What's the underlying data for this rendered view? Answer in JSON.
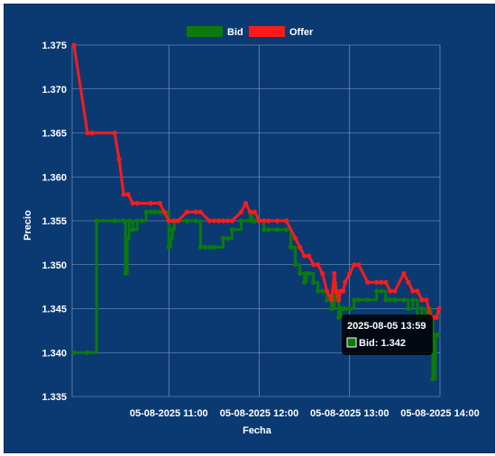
{
  "colors": {
    "background": "#0b3a73",
    "grid": "#8aa3c7",
    "bid": "#0b7a0b",
    "offer": "#ff1a1a",
    "text": "#ffffff",
    "tooltip_bg": "#000000"
  },
  "tooltip": {
    "title": "2025-08-05 13:59",
    "body": "Bid: 1.342"
  },
  "chart_data": {
    "type": "line",
    "xlabel": "Fecha",
    "ylabel": "Precio",
    "grid": true,
    "legend_position": "top",
    "ylim": [
      1.335,
      1.375
    ],
    "y_ticks": [
      "1.375",
      "1.370",
      "1.365",
      "1.360",
      "1.355",
      "1.350",
      "1.345",
      "1.340",
      "1.335"
    ],
    "xlim_minutes": [
      9.93,
      14.0
    ],
    "x_ticks": [
      {
        "label": "05-08-2025 11:00",
        "hour": 11
      },
      {
        "label": "05-08-2025 12:00",
        "hour": 12
      },
      {
        "label": "05-08-2025 13:00",
        "hour": 13
      },
      {
        "label": "05-08-2025 14:00",
        "hour": 14
      }
    ],
    "series": [
      {
        "name": "Bid",
        "color": "#0b7a0b",
        "x_hours": [
          9.95,
          10.1,
          10.2,
          10.4,
          10.5,
          10.52,
          10.54,
          10.56,
          10.6,
          10.65,
          10.7,
          10.75,
          10.8,
          10.85,
          10.9,
          11.0,
          11.02,
          11.04,
          11.06,
          11.1,
          11.2,
          11.3,
          11.35,
          11.4,
          11.45,
          11.5,
          11.6,
          11.65,
          11.7,
          11.8,
          11.9,
          11.92,
          11.95,
          12.0,
          12.05,
          12.1,
          12.2,
          12.3,
          12.35,
          12.4,
          12.45,
          12.5,
          12.52,
          12.55,
          12.6,
          12.65,
          12.7,
          12.75,
          12.8,
          12.83,
          12.85,
          12.88,
          12.9,
          12.93,
          12.95,
          13.0,
          13.05,
          13.1,
          13.2,
          13.3,
          13.35,
          13.4,
          13.45,
          13.5,
          13.6,
          13.65,
          13.7,
          13.75,
          13.8,
          13.85,
          13.88,
          13.9,
          13.92,
          13.95,
          13.98
        ],
        "values": [
          1.34,
          1.34,
          1.355,
          1.355,
          1.355,
          1.349,
          1.353,
          1.355,
          1.354,
          1.355,
          1.355,
          1.356,
          1.356,
          1.356,
          1.356,
          1.352,
          1.353,
          1.354,
          1.355,
          1.355,
          1.355,
          1.355,
          1.352,
          1.352,
          1.352,
          1.352,
          1.353,
          1.353,
          1.354,
          1.355,
          1.356,
          1.355,
          1.355,
          1.355,
          1.354,
          1.354,
          1.354,
          1.354,
          1.352,
          1.35,
          1.349,
          1.348,
          1.349,
          1.349,
          1.348,
          1.347,
          1.347,
          1.346,
          1.345,
          1.348,
          1.346,
          1.344,
          1.345,
          1.345,
          1.345,
          1.345,
          1.346,
          1.346,
          1.346,
          1.347,
          1.347,
          1.346,
          1.346,
          1.346,
          1.346,
          1.345,
          1.346,
          1.344,
          1.345,
          1.344,
          1.345,
          1.344,
          1.337,
          1.342,
          1.342
        ]
      },
      {
        "name": "Offer",
        "color": "#ff1a1a",
        "x_hours": [
          9.95,
          10.1,
          10.15,
          10.4,
          10.45,
          10.5,
          10.55,
          10.6,
          10.65,
          10.8,
          10.9,
          10.95,
          11.0,
          11.05,
          11.1,
          11.2,
          11.3,
          11.35,
          11.45,
          11.5,
          11.55,
          11.6,
          11.65,
          11.7,
          11.8,
          11.85,
          11.9,
          11.95,
          12.0,
          12.05,
          12.1,
          12.2,
          12.3,
          12.4,
          12.45,
          12.5,
          12.55,
          12.6,
          12.65,
          12.7,
          12.75,
          12.8,
          12.83,
          12.85,
          12.88,
          12.9,
          12.93,
          12.95,
          13.0,
          13.05,
          13.1,
          13.2,
          13.3,
          13.35,
          13.4,
          13.45,
          13.5,
          13.6,
          13.65,
          13.7,
          13.75,
          13.8,
          13.85,
          13.9,
          13.93,
          13.96,
          13.99
        ],
        "values": [
          1.375,
          1.365,
          1.365,
          1.365,
          1.362,
          1.358,
          1.358,
          1.357,
          1.357,
          1.357,
          1.357,
          1.356,
          1.355,
          1.355,
          1.355,
          1.356,
          1.356,
          1.356,
          1.355,
          1.355,
          1.355,
          1.355,
          1.355,
          1.355,
          1.356,
          1.357,
          1.356,
          1.356,
          1.355,
          1.355,
          1.355,
          1.355,
          1.355,
          1.353,
          1.352,
          1.351,
          1.351,
          1.35,
          1.35,
          1.349,
          1.347,
          1.346,
          1.349,
          1.347,
          1.346,
          1.347,
          1.347,
          1.348,
          1.349,
          1.35,
          1.35,
          1.348,
          1.348,
          1.348,
          1.348,
          1.347,
          1.347,
          1.349,
          1.348,
          1.347,
          1.347,
          1.346,
          1.346,
          1.344,
          1.344,
          1.344,
          1.345
        ]
      }
    ]
  }
}
